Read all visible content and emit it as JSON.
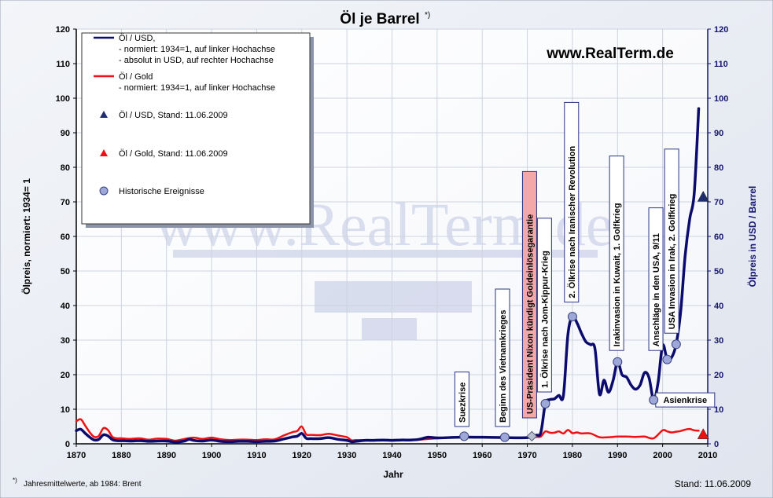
{
  "chart_data": {
    "type": "line",
    "title": "Öl  je Barrel",
    "title_footnote_marker": "*)",
    "watermark": "www.RealTerm.de",
    "brand_url": "www.RealTerm.de",
    "xlabel": "Jahr",
    "ylabel_left": "Ölpreis, normiert: 1934= 1",
    "ylabel_right": "Ölpreis in USD / Barrel",
    "xlim": [
      1870,
      2010
    ],
    "ylim": [
      0,
      120
    ],
    "x_ticks": [
      1870,
      1880,
      1890,
      1900,
      1910,
      1920,
      1930,
      1940,
      1950,
      1960,
      1970,
      1980,
      1990,
      2000,
      2010
    ],
    "y_ticks": [
      0,
      10,
      20,
      30,
      40,
      50,
      60,
      70,
      80,
      90,
      100,
      110,
      120
    ],
    "grid": true,
    "legend_position": "top-left",
    "footnote": "Jahresmittelwerte, ab 1984: Brent",
    "stand": "Stand: 11.06.2009",
    "colors": {
      "usd": "#0b0b6e",
      "gold": "#ee1111",
      "event": "#9ea8d8",
      "axis_right": "#14146e",
      "gold_standard_event": "#f4a8a8"
    },
    "legend": [
      {
        "marker": "line",
        "color": "#0b0b6e",
        "lines": [
          "Öl / USD,",
          "- normiert: 1934=1, auf linker Hochachse",
          "- absolut in USD, auf rechter Hochachse"
        ]
      },
      {
        "marker": "line",
        "color": "#ee1111",
        "lines": [
          "Öl / Gold",
          "- normiert: 1934=1, auf linker Hochachse"
        ]
      },
      {
        "marker": "triangle",
        "color": "#1f2d6e",
        "lines": [
          "Öl / USD, Stand: 11.06.2009"
        ]
      },
      {
        "marker": "triangle",
        "color": "#ee1111",
        "lines": [
          "Öl / Gold, Stand: 11.06.2009"
        ]
      },
      {
        "marker": "circle",
        "color": "#9ea8d8",
        "lines": [
          "Historische Ereignisse"
        ]
      }
    ],
    "series": [
      {
        "name": "Öl / USD",
        "color": "#0b0b6e",
        "x": [
          1870,
          1871,
          1872,
          1873,
          1874,
          1875,
          1876,
          1877,
          1878,
          1879,
          1880,
          1882,
          1884,
          1886,
          1888,
          1890,
          1892,
          1894,
          1895,
          1896,
          1898,
          1900,
          1902,
          1904,
          1906,
          1908,
          1910,
          1912,
          1914,
          1916,
          1918,
          1919,
          1920,
          1921,
          1922,
          1924,
          1926,
          1928,
          1930,
          1931,
          1932,
          1934,
          1936,
          1938,
          1940,
          1942,
          1944,
          1946,
          1948,
          1950,
          1955,
          1960,
          1965,
          1970,
          1972,
          1973,
          1974,
          1975,
          1976,
          1977,
          1978,
          1979,
          1980,
          1981,
          1982,
          1983,
          1984,
          1985,
          1986,
          1987,
          1988,
          1989,
          1990,
          1991,
          1992,
          1993,
          1994,
          1995,
          1996,
          1997,
          1998,
          1999,
          2000,
          2001,
          2002,
          2003,
          2004,
          2005,
          2006,
          2007,
          2008
        ],
        "values": [
          3.8,
          4.2,
          3.0,
          1.9,
          1.1,
          1.3,
          2.6,
          2.3,
          1.2,
          0.9,
          0.9,
          0.8,
          0.9,
          0.7,
          0.8,
          0.8,
          0.5,
          0.8,
          1.3,
          1.0,
          0.8,
          1.1,
          0.7,
          0.6,
          0.7,
          0.7,
          0.6,
          0.7,
          0.8,
          1.4,
          2.0,
          2.2,
          3.0,
          1.6,
          1.5,
          1.5,
          1.8,
          1.3,
          1.0,
          0.6,
          0.7,
          1.0,
          1.0,
          1.1,
          1.0,
          1.1,
          1.1,
          1.3,
          1.9,
          1.7,
          1.9,
          1.9,
          1.8,
          1.8,
          2.5,
          3.3,
          11.6,
          12.8,
          13.0,
          14.0,
          14.0,
          31.6,
          36.8,
          35.0,
          32.0,
          29.5,
          28.7,
          27.5,
          14.4,
          18.4,
          14.9,
          18.2,
          23.7,
          20.0,
          19.3,
          17.0,
          15.8,
          17.0,
          20.6,
          19.1,
          12.7,
          17.8,
          28.5,
          24.4,
          25.0,
          28.8,
          38.3,
          54.5,
          65.1,
          72.4,
          97.0
        ]
      },
      {
        "name": "Öl / Gold",
        "color": "#ee1111",
        "x": [
          1870,
          1871,
          1872,
          1873,
          1874,
          1875,
          1876,
          1877,
          1878,
          1879,
          1880,
          1882,
          1884,
          1886,
          1888,
          1890,
          1892,
          1894,
          1896,
          1898,
          1900,
          1902,
          1904,
          1906,
          1908,
          1910,
          1912,
          1914,
          1916,
          1918,
          1919,
          1920,
          1921,
          1922,
          1924,
          1926,
          1928,
          1930,
          1931,
          1932,
          1934,
          1936,
          1940,
          1945,
          1950,
          1955,
          1960,
          1965,
          1970,
          1972,
          1973,
          1974,
          1975,
          1976,
          1977,
          1978,
          1979,
          1980,
          1981,
          1982,
          1984,
          1986,
          1988,
          1990,
          1992,
          1994,
          1996,
          1998,
          2000,
          2001,
          2002,
          2003,
          2004,
          2005,
          2006,
          2007,
          2008
        ],
        "values": [
          6.5,
          7.1,
          5.2,
          3.3,
          2.0,
          2.3,
          4.5,
          4.0,
          2.0,
          1.6,
          1.6,
          1.4,
          1.6,
          1.2,
          1.5,
          1.4,
          0.9,
          1.4,
          1.8,
          1.4,
          1.8,
          1.3,
          1.1,
          1.2,
          1.2,
          1.1,
          1.3,
          1.3,
          2.4,
          3.4,
          3.7,
          5.0,
          2.7,
          2.6,
          2.5,
          2.9,
          2.4,
          1.9,
          1.0,
          1.1,
          1.0,
          1.0,
          1.1,
          1.1,
          1.6,
          1.9,
          1.9,
          1.8,
          1.8,
          2.0,
          2.1,
          3.6,
          3.2,
          3.2,
          3.6,
          3.0,
          4.0,
          3.1,
          3.3,
          3.0,
          3.0,
          1.9,
          1.9,
          2.1,
          2.1,
          2.0,
          2.1,
          1.6,
          3.9,
          3.6,
          3.3,
          3.5,
          3.7,
          4.1,
          4.3,
          3.9,
          3.8
        ]
      }
    ],
    "current_markers": [
      {
        "name": "Öl / USD, Stand: 11.06.2009",
        "x": 2009,
        "y": 71.5,
        "color": "#1f2d6e"
      },
      {
        "name": "Öl / Gold, Stand: 11.06.2009",
        "x": 2009,
        "y": 2.8,
        "color": "#ee1111"
      }
    ],
    "events": [
      {
        "label": "Suezkrise",
        "x": 1956,
        "y": 2.2,
        "label_anchor_y": 5,
        "label_x": 1955.5,
        "style": "normal",
        "marker": "circle"
      },
      {
        "label": "Beginn des Vietnamkrieges",
        "x": 1965,
        "y": 1.9,
        "label_anchor_y": 5,
        "label_x": 1964.5,
        "style": "normal",
        "marker": "circle"
      },
      {
        "label": "US-Präsident Nixon kündigt Goldeinlösegarantie",
        "x": 1971,
        "y": 2.2,
        "label_anchor_y": 7.5,
        "label_x": 1970.5,
        "style": "gold",
        "marker": "diamond"
      },
      {
        "label": "1. Ölkrise nach Jom-Kippur-Krieg",
        "x": 1974,
        "y": 11.6,
        "label_anchor_y": 15,
        "label_x": 1973.8,
        "style": "normal",
        "marker": "circle"
      },
      {
        "label": "2. Ölkrise nach Iranischer Revolution",
        "x": 1980,
        "y": 36.8,
        "label_anchor_y": 41,
        "label_x": 1979.8,
        "style": "normal",
        "marker": "circle"
      },
      {
        "label": "Irakinvasion in Kuwait, 1. Golfkrieg",
        "x": 1990,
        "y": 23.7,
        "label_anchor_y": 27,
        "label_x": 1989.8,
        "style": "normal",
        "marker": "circle"
      },
      {
        "label": "Anschläge in den USA, 9/11",
        "x": 2001,
        "y": 24.4,
        "label_anchor_y": 27,
        "label_x": 1998.5,
        "style": "normal",
        "marker": "circle"
      },
      {
        "label": "USA Invasion in Irak, 2. Golfkrieg",
        "x": 2003,
        "y": 28.8,
        "label_anchor_y": 32,
        "label_x": 2002,
        "style": "normal",
        "marker": "circle"
      },
      {
        "label": "Asienkrise",
        "x": 1998,
        "y": 12.7,
        "label_anchor_y": 12.7,
        "label_x": 2005,
        "style": "normal",
        "marker": "circle",
        "horizontal": true
      }
    ]
  }
}
